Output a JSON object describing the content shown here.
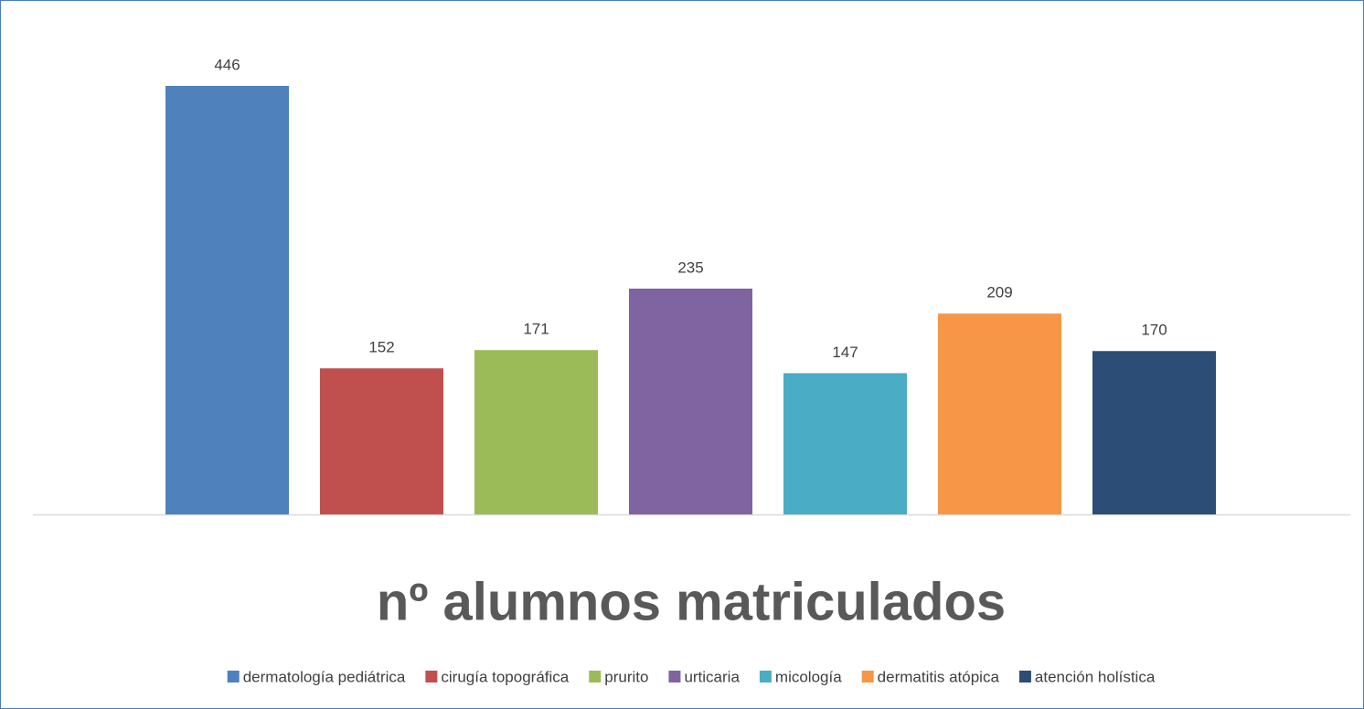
{
  "chart_data": {
    "type": "bar",
    "title": "nº alumnos matriculados",
    "categories": [
      "dermatología pediátrica",
      "cirugía topográfica",
      "prurito",
      "urticaria",
      "micología",
      "dermatitis atópica",
      "atención holística"
    ],
    "values": [
      446,
      152,
      171,
      235,
      147,
      209,
      170
    ],
    "colors": [
      "#4f81bd",
      "#c0504d",
      "#9bbb59",
      "#8064a2",
      "#4bacc6",
      "#f79646",
      "#2c4d75"
    ],
    "legend": "bottom",
    "grid": false
  }
}
